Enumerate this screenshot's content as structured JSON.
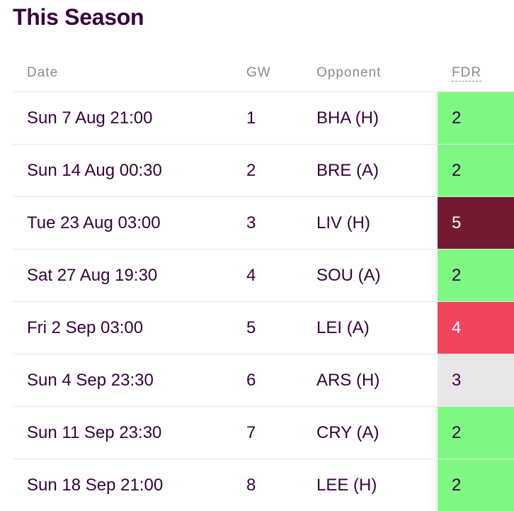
{
  "title": "This Season",
  "headers": {
    "date": "Date",
    "gw": "GW",
    "opponent": "Opponent",
    "fdr": "FDR"
  },
  "fixtures": [
    {
      "date": "Sun 7 Aug 21:00",
      "gw": "1",
      "opponent": "BHA (H)",
      "fdr": "2"
    },
    {
      "date": "Sun 14 Aug 00:30",
      "gw": "2",
      "opponent": "BRE (A)",
      "fdr": "2"
    },
    {
      "date": "Tue 23 Aug 03:00",
      "gw": "3",
      "opponent": "LIV (H)",
      "fdr": "5"
    },
    {
      "date": "Sat 27 Aug 19:30",
      "gw": "4",
      "opponent": "SOU (A)",
      "fdr": "2"
    },
    {
      "date": "Fri 2 Sep 03:00",
      "gw": "5",
      "opponent": "LEI (A)",
      "fdr": "4"
    },
    {
      "date": "Sun 4 Sep 23:30",
      "gw": "6",
      "opponent": "ARS (H)",
      "fdr": "3"
    },
    {
      "date": "Sun 11 Sep 23:30",
      "gw": "7",
      "opponent": "CRY (A)",
      "fdr": "2"
    },
    {
      "date": "Sun 18 Sep 21:00",
      "gw": "8",
      "opponent": "LEE (H)",
      "fdr": "2"
    }
  ],
  "fdr_colors": {
    "2": "#7df982",
    "3": "#e7e7e7",
    "4": "#f0455a",
    "5": "#731a30"
  }
}
